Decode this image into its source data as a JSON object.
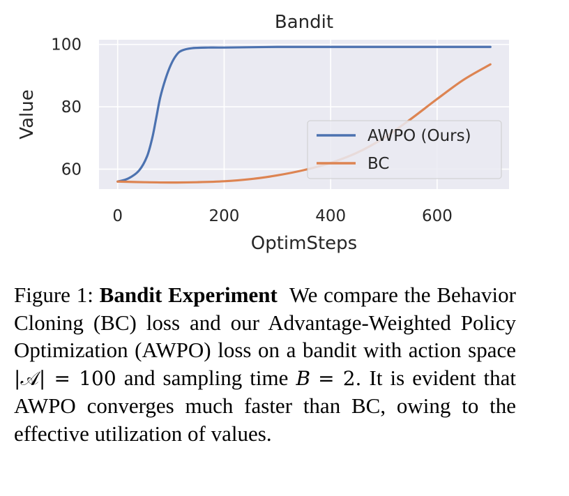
{
  "chart_data": {
    "type": "line",
    "title": "Bandit",
    "xlabel": "OptimSteps",
    "ylabel": "Value",
    "xlim": [
      -35,
      735
    ],
    "ylim": [
      53.6,
      101.5
    ],
    "xticks": [
      0,
      200,
      400,
      600
    ],
    "yticks": [
      60,
      80,
      100
    ],
    "grid": true,
    "legend_position": "center-right",
    "series": [
      {
        "name": "AWPO (Ours)",
        "color": "#4c72b0",
        "x": [
          0,
          20,
          40,
          55,
          65,
          72,
          80,
          90,
          100,
          110,
          120,
          140,
          170,
          200,
          300,
          400,
          500,
          600,
          700
        ],
        "y": [
          56,
          57,
          59.5,
          64,
          70,
          76,
          83,
          89,
          93.5,
          96.5,
          98,
          98.8,
          99,
          99,
          99.2,
          99.2,
          99.2,
          99.2,
          99.2
        ]
      },
      {
        "name": "BC",
        "color": "#dd8452",
        "x": [
          0,
          50,
          100,
          150,
          200,
          250,
          300,
          350,
          400,
          450,
          500,
          550,
          600,
          650,
          700
        ],
        "y": [
          56,
          55.8,
          55.7,
          55.8,
          56.1,
          56.8,
          58,
          59.7,
          62,
          65.3,
          70,
          76,
          82.5,
          88.7,
          93.6
        ]
      }
    ]
  },
  "caption": {
    "figure_label": "Figure 1:",
    "bold_title": "Bandit Experiment",
    "text_1": "We compare the Behavior Cloning (BC) loss and our Advantage-Weighted Policy Optimization (AWPO) loss on a bandit with action space",
    "math_1": "|𝒜| = 100",
    "text_2": "and sampling time",
    "math_2_var": "B",
    "math_2_rest": "= 2.",
    "text_3": "It is evident that AWPO converges much faster than BC, owing to the effective utilization of values."
  }
}
